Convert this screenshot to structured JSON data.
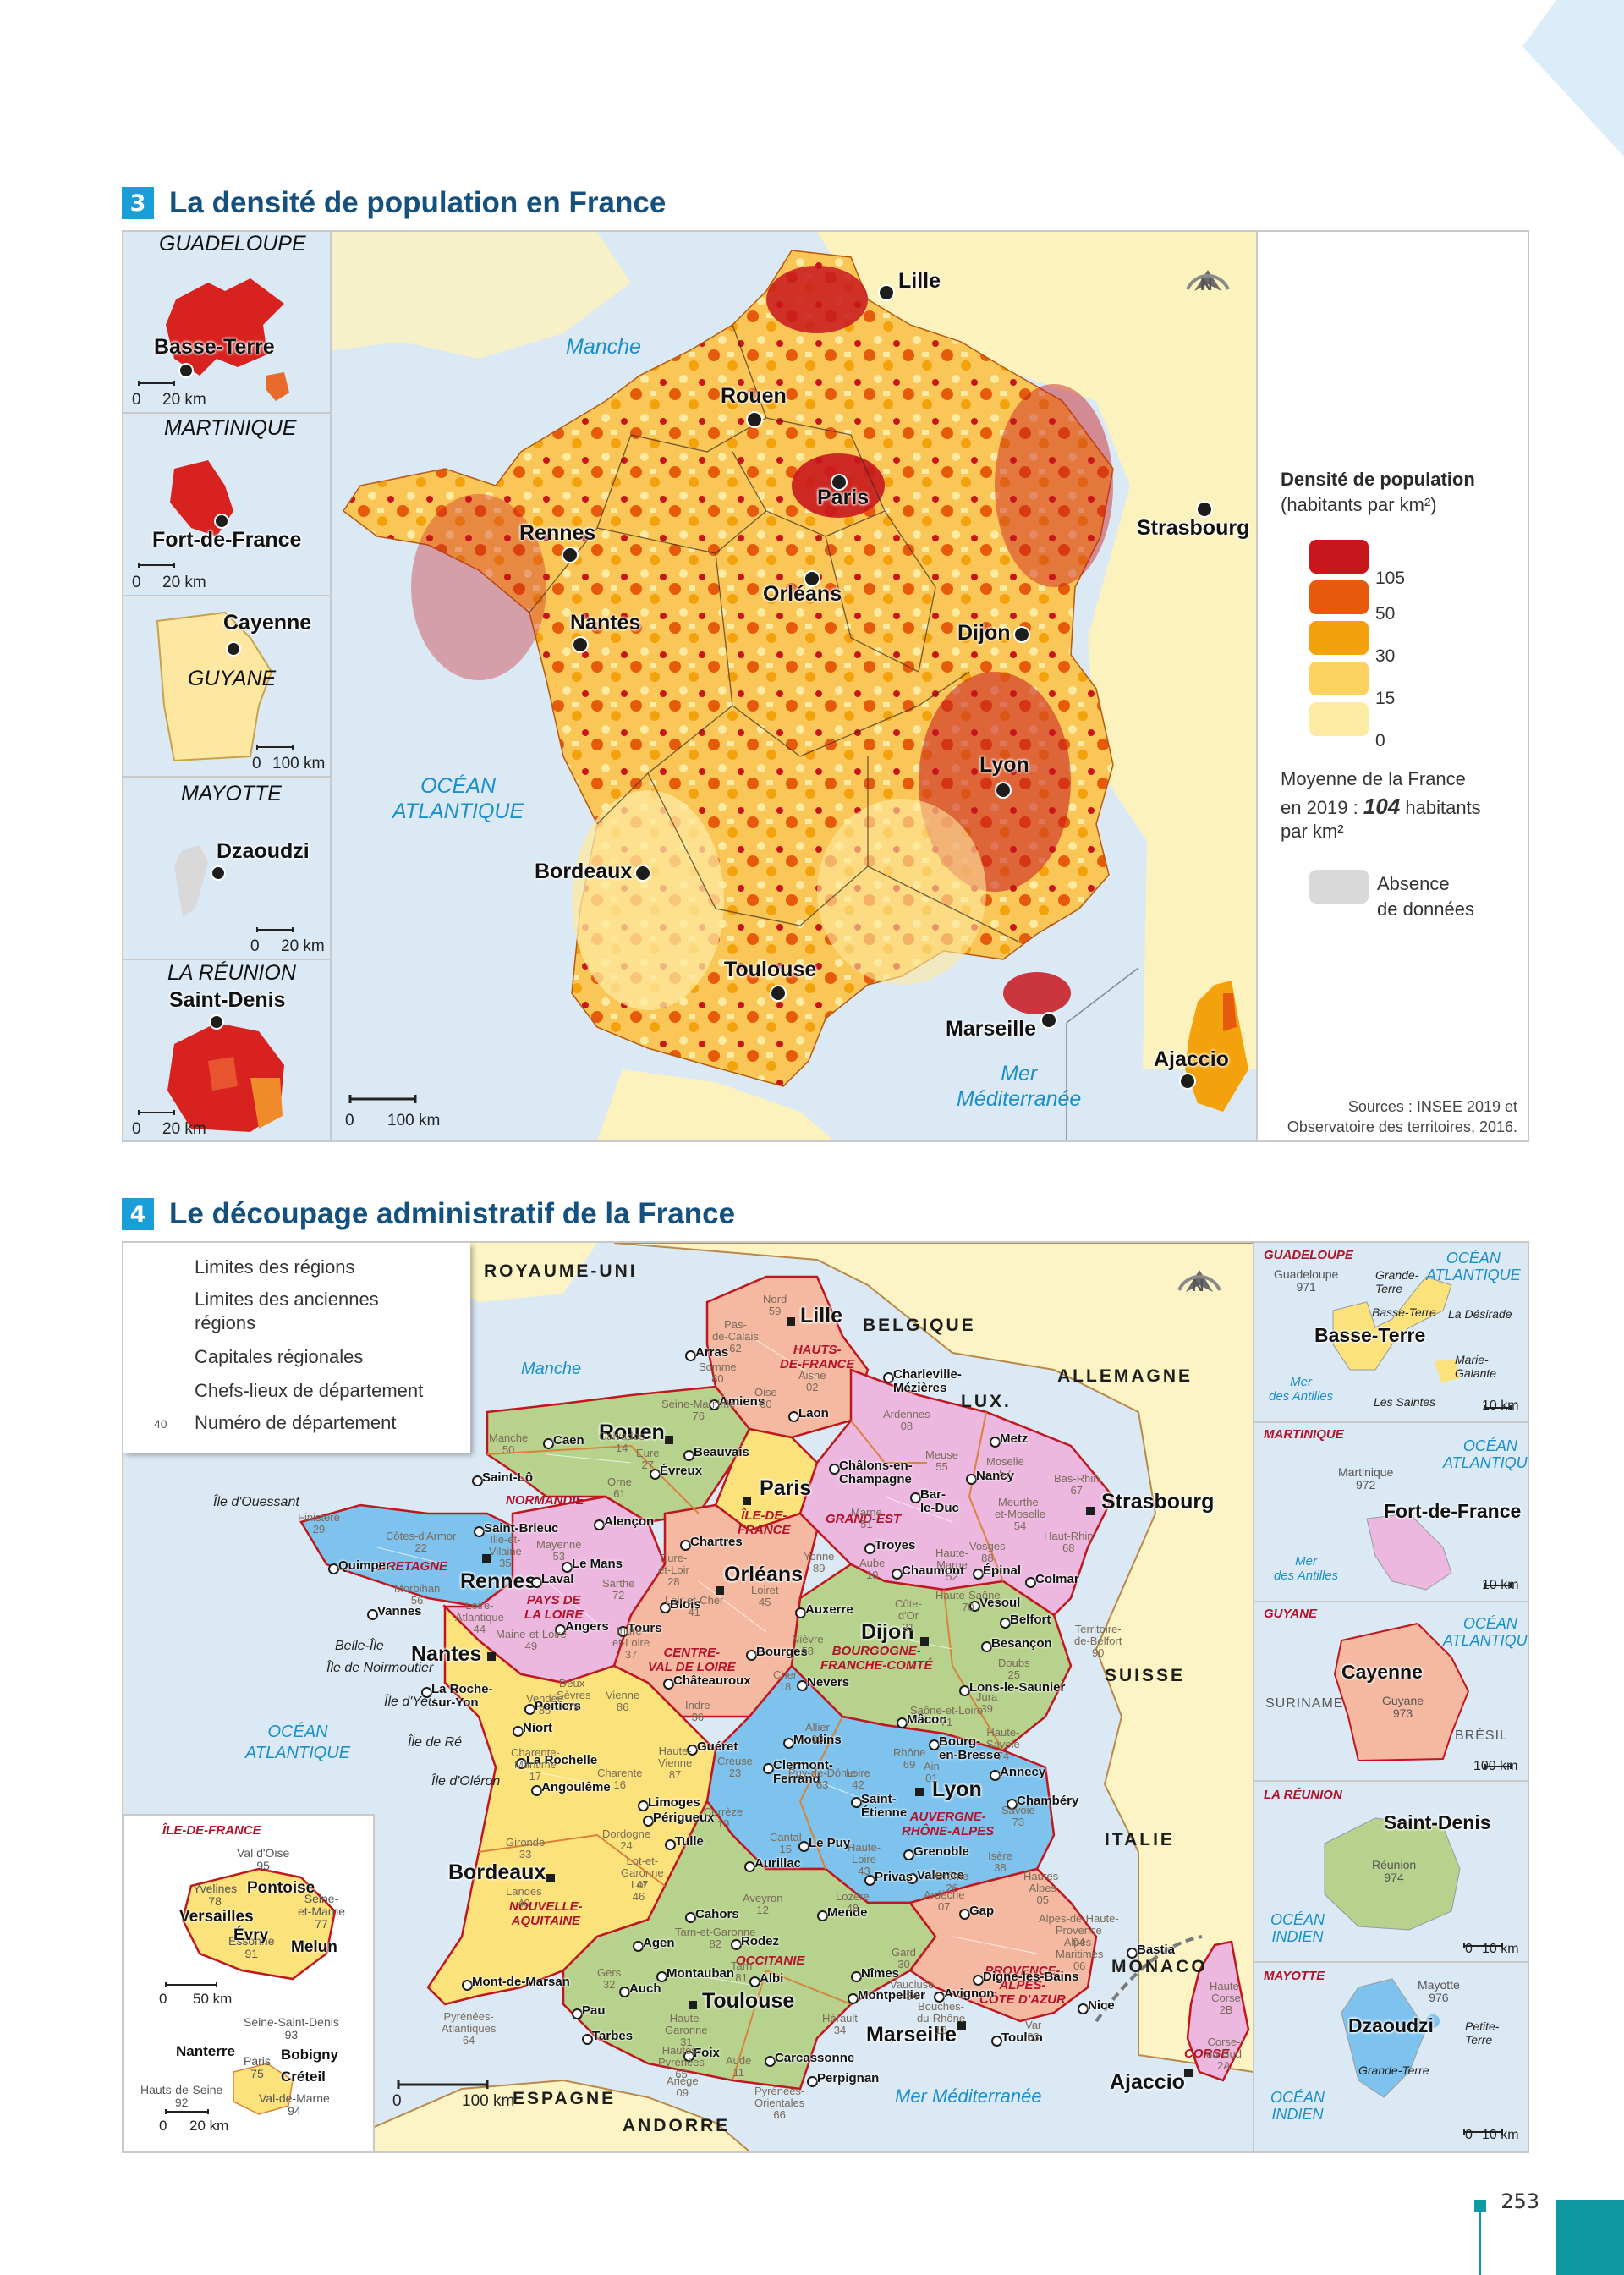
{
  "page": {
    "number": "253"
  },
  "section3": {
    "num": "3",
    "title": "La densité de population en France",
    "insets": {
      "guadeloupe": {
        "title": "GUADELOUPE",
        "city": "Basse-Terre",
        "scale": [
          "0",
          "20 km"
        ]
      },
      "martinique": {
        "title": "MARTINIQUE",
        "city": "Fort-de-France",
        "scale": [
          "0",
          "20 km"
        ]
      },
      "guyane": {
        "title": "GUYANE",
        "city": "Cayenne",
        "scale": [
          "0",
          "100 km"
        ]
      },
      "mayotte": {
        "title": "MAYOTTE",
        "city": "Dzaoudzi",
        "scale": [
          "0",
          "20 km"
        ]
      },
      "reunion": {
        "title": "LA RÉUNION",
        "city": "Saint-Denis",
        "scale": [
          "0",
          "20 km"
        ]
      }
    },
    "cities": [
      "Lille",
      "Rouen",
      "Paris",
      "Strasbourg",
      "Rennes",
      "Orléans",
      "Nantes",
      "Dijon",
      "Lyon",
      "Bordeaux",
      "Toulouse",
      "Marseille",
      "Ajaccio"
    ],
    "seas": {
      "manche": "Manche",
      "ocean": "OCÉAN\nATLANTIQUE",
      "med": "Mer\nMéditerranée"
    },
    "north": "N",
    "scale": [
      "0",
      "100 km"
    ],
    "legend": {
      "title": "Densité de population",
      "subtitle": "(habitants par km²)",
      "classes": [
        {
          "color": "#c8161d",
          "value": "105"
        },
        {
          "color": "#e55a0c",
          "value": "50"
        },
        {
          "color": "#f4a20c",
          "value": "30"
        },
        {
          "color": "#fcd361",
          "value": "15"
        },
        {
          "color": "#fdeaa3",
          "value": "0"
        }
      ],
      "average_pre": "Moyenne de la France",
      "average_mid": "en 2019 :",
      "average_value": "104",
      "average_unit": "habitants",
      "average_unit2": "par km²",
      "nodata_color": "#d9d9d9",
      "nodata_label_1": "Absence",
      "nodata_label_2": "de données"
    },
    "sources": [
      "Sources : INSEE 2019 et",
      "Observatoire des territoires, 2016."
    ]
  },
  "section4": {
    "num": "4",
    "title": "Le découpage administratif de la France",
    "legend": {
      "regions_limit": "Limites des régions",
      "old_regions_limit_1": "Limites des anciennes",
      "old_regions_limit_2": "régions",
      "capitals": "Capitales régionales",
      "prefectures": "Chefs-lieux de département",
      "dep_number_sample": "40",
      "dep_number": "Numéro de département",
      "region_color": "#c0171f",
      "old_region_color": "#d8823b"
    },
    "countries": [
      "ROYAUME-UNI",
      "BELGIQUE",
      "LUX.",
      "ALLEMAGNE",
      "SUISSE",
      "ITALIE",
      "MONACO",
      "ESPAGNE",
      "ANDORRE"
    ],
    "seas": {
      "manche": "Manche",
      "ocean": "OCÉAN\nATLANTIQUE",
      "med": "Mer Méditerranée"
    },
    "islands": [
      "Île d'Ouessant",
      "Belle-Île",
      "Île  de Noirmoutier",
      "Île  d'Yeu",
      "Île  de Ré",
      "Île  d'Oléron"
    ],
    "regions": [
      "HAUTS-\nDE-FRANCE",
      "NORMANDIE",
      "ÎLE-DE-\nFRANCE",
      "GRAND-EST",
      "BRETAGNE",
      "PAYS DE\nLA LOIRE",
      "CENTRE-\nVAL DE LOIRE",
      "BOURGOGNE-\nFRANCHE-COMTÉ",
      "NOUVELLE-\nAQUITAINE",
      "AUVERGNE-\nRHÔNE-ALPES",
      "OCCITANIE",
      "PROVENCE-\nALPES-\nCÔTE D'AZUR",
      "CORSE"
    ],
    "capitals": [
      "Lille",
      "Rouen",
      "Paris",
      "Strasbourg",
      "Rennes",
      "Orléans",
      "Nantes",
      "Dijon",
      "Bordeaux",
      "Lyon",
      "Toulouse",
      "Marseille",
      "Ajaccio"
    ],
    "prefectures": [
      "Arras",
      "Amiens",
      "Laon",
      "Beauvais",
      "Charleville-\nMézières",
      "Caen",
      "Saint-Lô",
      "Évreux",
      "Alençon",
      "Metz",
      "Bar-\nle-Duc",
      "Nancy",
      "Châlons-en-\nChampagne",
      "Troyes",
      "Chaumont",
      "Épinal",
      "Colmar",
      "Saint-Brieuc",
      "Quimper",
      "Vannes",
      "Laval",
      "Le Mans",
      "Angers",
      "Chartres",
      "Blois",
      "Tours",
      "Bourges",
      "Châteauroux",
      "Auxerre",
      "Nevers",
      "Vesoul",
      "Besançon",
      "Belfort",
      "Lons-le-Saunier",
      "Mâcon",
      "La Roche-\nsur-Yon",
      "Niort",
      "Poitiers",
      "La Rochelle",
      "Angoulême",
      "Limoges",
      "Guéret",
      "Moulins",
      "Clermont-\nFerrand",
      "Bourg-\nen-Bresse",
      "Annecy",
      "Chambéry",
      "Saint-\nÉtienne",
      "Le Puy",
      "Grenoble",
      "Valence",
      "Privas",
      "Aurillac",
      "Tulle",
      "Périgueux",
      "Cahors",
      "Mende",
      "Rodez",
      "Agen",
      "Mont-de-Marsan",
      "Auch",
      "Montauban",
      "Albi",
      "Nîmes",
      "Montpellier",
      "Avignon",
      "Digne-les-Bains",
      "Gap",
      "Nice",
      "Toulon",
      "Carcassonne",
      "Perpignan",
      "Foix",
      "Tarbes",
      "Pau",
      "Bastia"
    ],
    "departments": [
      "Nord\n59",
      "Pas-\nde-Calais\n62",
      "Somme\n80",
      "Aisne\n02",
      "Oise\n60",
      "Ardennes\n08",
      "Seine-Maritime\n76",
      "Calvados\n14",
      "Manche\n50",
      "Eure\n27",
      "Orne\n61",
      "Meuse\n55",
      "Moselle\n57",
      "Bas-Rhin\n67",
      "Meurthe-\net-Moselle\n54",
      "Marne\n51",
      "Aube\n10",
      "Haute-\nMarne\n52",
      "Vosges\n88",
      "Haut-Rhin\n68",
      "Finistère\n29",
      "Côtes-d'Armor\n22",
      "Morbihan\n56",
      "Ille-et-\nVilaine\n35",
      "Mayenne\n53",
      "Sarthe\n72",
      "Loire-\nAtlantique\n44",
      "Maine-et-Loire\n49",
      "Eure-\net-Loir\n28",
      "Loir-et-Cher\n41",
      "Loiret\n45",
      "Indre-\net-Loire\n37",
      "Cher\n18",
      "Indre\n36",
      "Yonne\n89",
      "Nièvre\n58",
      "Côte-\nd'Or\n21",
      "Haute-Saône\n70",
      "Doubs\n25",
      "Jura\n39",
      "Saône-et-Loire\n71",
      "Territoire-\nde-Belfort\n90",
      "Vendée\n85",
      "Deux-\nSèvres\n79",
      "Vienne\n86",
      "Charente-\nMaritime\n17",
      "Charente\n16",
      "Haute-\nVienne\n87",
      "Creuse\n23",
      "Corrèze\n19",
      "Dordogne\n24",
      "Gironde\n33",
      "Lot-et-\nGaronne\n47",
      "Landes\n40",
      "Pyrénées-\nAtlantiques\n64",
      "Allier\n03",
      "Puy-de-Dôme\n63",
      "Cantal\n15",
      "Haute-\nLoire\n43",
      "Loire\n42",
      "Rhône\n69",
      "Ain\n01",
      "Haute-\nSavoie\n74",
      "Savoie\n73",
      "Isère\n38",
      "Drôme\n26",
      "Ardèche\n07",
      "Lot\n46",
      "Aveyron\n12",
      "Lozère\n48",
      "Tarn-et-Garonne\n82",
      "Gers\n32",
      "Tarn\n81",
      "Haute-\nGaronne\n31",
      "Hautes-\nPyrénées\n65",
      "Ariège\n09",
      "Aude\n11",
      "Hérault\n34",
      "Gard\n30",
      "Pyrénées-\nOrientales\n66",
      "Vaucluse\n84",
      "Bouches-\ndu-Rhône\n13",
      "Var\n83",
      "Alpes-de-Haute-\nProvence\n04",
      "Hautes-\nAlpes\n05",
      "Alpes-\nMaritimes\n06",
      "Haute-\nCorse\n2B",
      "Corse-\ndu-Sud\n2A"
    ],
    "idf": {
      "title": "ÎLE-DE-FRANCE",
      "deps": [
        "Val d'Oise\n95",
        "Yvelines\n78",
        "Seine-\net-Marne\n77",
        "Essonne\n91"
      ],
      "cities": [
        "Pontoise",
        "Versailles",
        "Évry",
        "Melun"
      ],
      "scale": [
        "0",
        "50 km"
      ],
      "petite": {
        "deps": [
          "Seine-Saint-Denis\n93",
          "Paris\n75",
          "Hauts-de-Seine\n92",
          "Val-de-Marne\n94"
        ],
        "cities": [
          "Nanterre",
          "Bobigny",
          "Créteil"
        ],
        "scale": [
          "0",
          "20 km"
        ]
      }
    },
    "dom": {
      "guadeloupe": {
        "title": "GUADELOUPE",
        "dep": "Guadeloupe\n971",
        "city": "Basse-Terre",
        "islands": [
          "Grande-\nTerre",
          "La Désirade",
          "Marie-\nGalante",
          "Les Saintes"
        ],
        "sea": "Mer\ndes Antilles",
        "ocean": "OCÉAN\nATLANTIQUE",
        "scale": "10 km"
      },
      "martinique": {
        "title": "MARTINIQUE",
        "dep": "Martinique\n972",
        "city": "Fort-de-France",
        "sea": "Mer\ndes Antilles",
        "ocean": "OCÉAN\nATLANTIQUE",
        "scale": "10 km"
      },
      "guyane": {
        "title": "GUYANE",
        "dep": "Guyane\n973",
        "city": "Cayenne",
        "neighbors": [
          "SURINAME",
          "BRÉSIL"
        ],
        "ocean": "OCÉAN\nATLANTIQUE",
        "scale": "100 km"
      },
      "reunion": {
        "title": "LA RÉUNION",
        "dep": "Réunion\n974",
        "city": "Saint-Denis",
        "ocean": "OCÉAN\nINDIEN",
        "scale": [
          "0",
          "10 km"
        ]
      },
      "mayotte": {
        "title": "MAYOTTE",
        "dep": "Mayotte\n976",
        "city": "Dzaoudzi",
        "islands": [
          "Petite-\nTerre",
          "Grande-Terre"
        ],
        "ocean": "OCÉAN\nINDIEN",
        "scale": [
          "0",
          "10 km"
        ]
      }
    },
    "scale": [
      "0",
      "100 km"
    ],
    "north": "N"
  }
}
